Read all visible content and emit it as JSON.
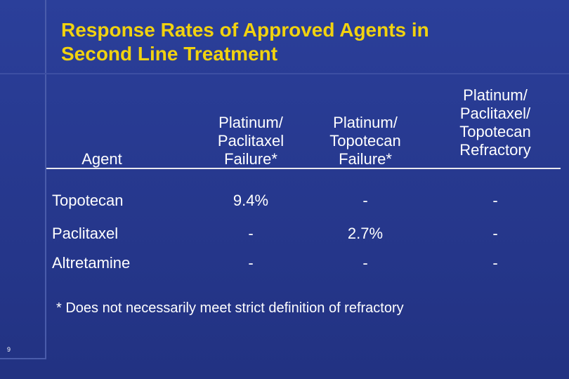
{
  "slide": {
    "title_lines": [
      "Response Rates of Approved Agents in",
      "Second Line Treatment"
    ],
    "table": {
      "headers": {
        "agent": "Agent",
        "col1": [
          "Platinum/",
          "Paclitaxel",
          "Failure*"
        ],
        "col2": [
          "Platinum/",
          "Topotecan",
          "Failure*"
        ],
        "col3": [
          "Platinum/",
          "Paclitaxel/",
          "Topotecan",
          "Refractory"
        ]
      },
      "rows": [
        {
          "agent": "Topotecan",
          "v1": "9.4%",
          "v2": "-",
          "v3": "-"
        },
        {
          "agent": "Paclitaxel",
          "v1": "-",
          "v2": "2.7%",
          "v3": "-"
        },
        {
          "agent": "Altretamine",
          "v1": "-",
          "v2": "-",
          "v3": "-"
        }
      ]
    },
    "footnote": "* Does not necessarily meet strict definition of refractory",
    "page_number": "9"
  },
  "colors": {
    "background": "#2b3f9a",
    "title": "#f1d20f",
    "text": "#ffffff"
  }
}
